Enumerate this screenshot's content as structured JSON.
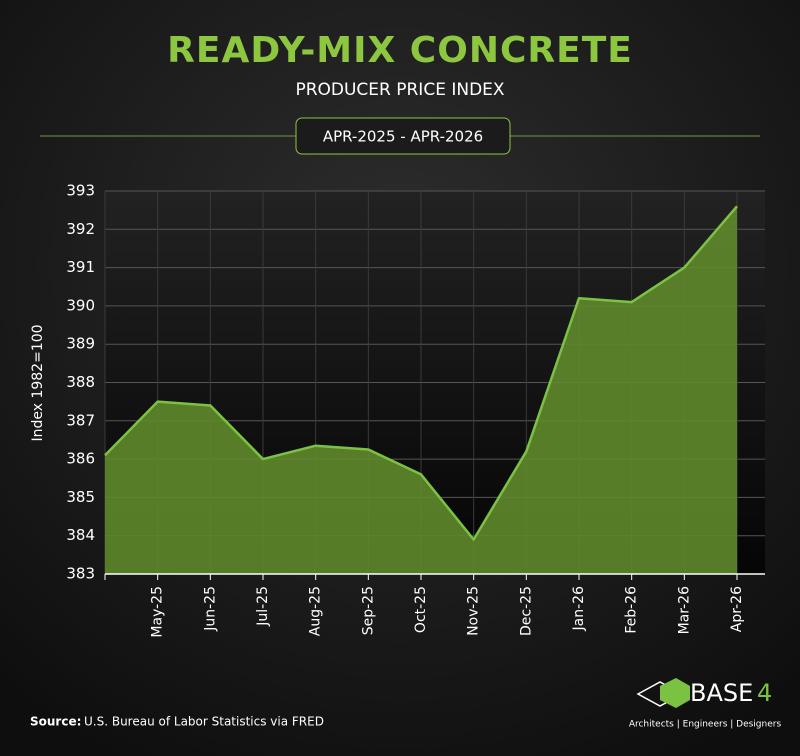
{
  "chart_data": {
    "type": "area",
    "title": "READY-MIX CONCRETE",
    "subtitle": "PRODUCER PRICE INDEX",
    "y_label": "Index 1982=100",
    "categories": [
      null,
      "May-25",
      "Jun-25",
      "Jul-25",
      "Aug-25",
      "Sep-25",
      "Oct-25",
      "Nov-25",
      "Dec-25",
      "Jan-26",
      "Feb-26",
      "Mar-26",
      "Apr-26"
    ],
    "values": [
      386.1,
      387.5,
      387.4,
      386.0,
      386.35,
      386.25,
      385.6,
      383.9,
      386.2,
      390.2,
      390.1,
      391.0,
      392.6
    ],
    "color": "#7cc242",
    "fill": "#5f8a2c",
    "ylim": [
      383,
      393
    ],
    "yticks": [
      383,
      384,
      385,
      386,
      387,
      388,
      389,
      390,
      391,
      392,
      393
    ],
    "grid": true
  },
  "date_range": "APR-2025 - APR-2026",
  "source_label": "Source:",
  "source": "U.S. Bureau of Labor Statistics via FRED",
  "logo": {
    "name": "BASE",
    "digit": "4",
    "tagline": "Architects | Engineers | Designers"
  }
}
